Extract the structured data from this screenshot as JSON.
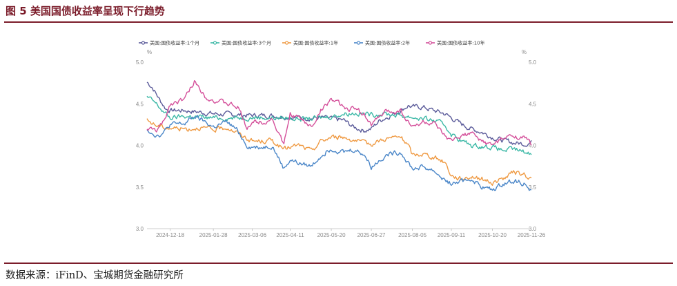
{
  "figure": {
    "title": "图 5 美国国债收益率呈现下行趋势",
    "source": "数据来源：iFinD、宝城期货金融研究所"
  },
  "chart_data": {
    "type": "line",
    "title": "",
    "xlabel": "",
    "ylabel_left": "%",
    "ylabel_right": "%",
    "ylim": [
      3.0,
      5.0
    ],
    "yticks": [
      "5.0",
      "4.5",
      "4.0",
      "3.5",
      "3.0"
    ],
    "grid": false,
    "legend": "top",
    "x_start": "2024-11-26",
    "x_end": "2025-11-26",
    "x_tick_labels": [
      "2024-12-18",
      "2025-01-28",
      "2025-03-06",
      "2025-04-11",
      "2025-05-20",
      "2025-06-27",
      "2025-08-05",
      "2025-09-11",
      "2025-10-20",
      "2025-11-26"
    ],
    "series": [
      {
        "name": "美国:国债收益率:1个月",
        "color": "#5b5b9a",
        "points": [
          [
            "2024-11-26",
            4.76
          ],
          [
            "2024-12-01",
            4.7
          ],
          [
            "2024-12-08",
            4.55
          ],
          [
            "2024-12-14",
            4.44
          ],
          [
            "2024-12-18",
            4.42
          ],
          [
            "2025-01-01",
            4.42
          ],
          [
            "2025-01-15",
            4.4
          ],
          [
            "2025-01-28",
            4.38
          ],
          [
            "2025-02-15",
            4.37
          ],
          [
            "2025-03-06",
            4.36
          ],
          [
            "2025-03-25",
            4.36
          ],
          [
            "2025-04-11",
            4.34
          ],
          [
            "2025-04-25",
            4.33
          ],
          [
            "2025-05-10",
            4.33
          ],
          [
            "2025-05-20",
            4.32
          ],
          [
            "2025-06-01",
            4.3
          ],
          [
            "2025-06-10",
            4.22
          ],
          [
            "2025-06-20",
            4.18
          ],
          [
            "2025-06-27",
            4.2
          ],
          [
            "2025-07-05",
            4.3
          ],
          [
            "2025-07-15",
            4.36
          ],
          [
            "2025-07-25",
            4.42
          ],
          [
            "2025-08-01",
            4.48
          ],
          [
            "2025-08-05",
            4.46
          ],
          [
            "2025-08-15",
            4.46
          ],
          [
            "2025-08-25",
            4.42
          ],
          [
            "2025-09-05",
            4.38
          ],
          [
            "2025-09-11",
            4.33
          ],
          [
            "2025-09-20",
            4.26
          ],
          [
            "2025-09-30",
            4.2
          ],
          [
            "2025-10-10",
            4.16
          ],
          [
            "2025-10-20",
            4.1
          ],
          [
            "2025-10-30",
            4.06
          ],
          [
            "2025-11-10",
            4.03
          ],
          [
            "2025-11-20",
            4.02
          ],
          [
            "2025-11-26",
            4.04
          ]
        ]
      },
      {
        "name": "美国:国债收益率:3个月",
        "color": "#3bb8a6",
        "points": [
          [
            "2024-11-26",
            4.58
          ],
          [
            "2024-12-03",
            4.52
          ],
          [
            "2024-12-12",
            4.4
          ],
          [
            "2024-12-18",
            4.33
          ],
          [
            "2025-01-01",
            4.35
          ],
          [
            "2025-01-15",
            4.34
          ],
          [
            "2025-01-28",
            4.33
          ],
          [
            "2025-02-15",
            4.33
          ],
          [
            "2025-03-06",
            4.34
          ],
          [
            "2025-03-25",
            4.33
          ],
          [
            "2025-04-11",
            4.33
          ],
          [
            "2025-04-25",
            4.32
          ],
          [
            "2025-05-10",
            4.33
          ],
          [
            "2025-05-20",
            4.35
          ],
          [
            "2025-06-01",
            4.38
          ],
          [
            "2025-06-10",
            4.39
          ],
          [
            "2025-06-20",
            4.38
          ],
          [
            "2025-06-27",
            4.37
          ],
          [
            "2025-07-10",
            4.38
          ],
          [
            "2025-07-25",
            4.36
          ],
          [
            "2025-08-05",
            4.34
          ],
          [
            "2025-08-15",
            4.32
          ],
          [
            "2025-08-25",
            4.3
          ],
          [
            "2025-09-05",
            4.24
          ],
          [
            "2025-09-11",
            4.14
          ],
          [
            "2025-09-20",
            4.06
          ],
          [
            "2025-09-30",
            4.0
          ],
          [
            "2025-10-10",
            3.99
          ],
          [
            "2025-10-20",
            3.98
          ],
          [
            "2025-10-30",
            3.94
          ],
          [
            "2025-11-10",
            3.95
          ],
          [
            "2025-11-20",
            3.92
          ],
          [
            "2025-11-26",
            3.9
          ]
        ]
      },
      {
        "name": "美国:国债收益率:1年",
        "color": "#ef9a43",
        "points": [
          [
            "2024-11-26",
            4.3
          ],
          [
            "2024-12-05",
            4.24
          ],
          [
            "2024-12-12",
            4.22
          ],
          [
            "2024-12-18",
            4.21
          ],
          [
            "2025-01-05",
            4.2
          ],
          [
            "2025-01-15",
            4.22
          ],
          [
            "2025-01-28",
            4.18
          ],
          [
            "2025-02-10",
            4.22
          ],
          [
            "2025-02-20",
            4.15
          ],
          [
            "2025-03-06",
            4.05
          ],
          [
            "2025-03-15",
            4.05
          ],
          [
            "2025-03-25",
            4.06
          ],
          [
            "2025-04-05",
            3.95
          ],
          [
            "2025-04-11",
            3.98
          ],
          [
            "2025-04-20",
            4.0
          ],
          [
            "2025-05-01",
            3.93
          ],
          [
            "2025-05-10",
            4.05
          ],
          [
            "2025-05-20",
            4.1
          ],
          [
            "2025-06-01",
            4.1
          ],
          [
            "2025-06-10",
            4.07
          ],
          [
            "2025-06-20",
            4.02
          ],
          [
            "2025-06-27",
            4.02
          ],
          [
            "2025-07-10",
            4.08
          ],
          [
            "2025-07-25",
            4.1
          ],
          [
            "2025-08-01",
            4.0
          ],
          [
            "2025-08-05",
            3.88
          ],
          [
            "2025-08-15",
            3.9
          ],
          [
            "2025-08-25",
            3.86
          ],
          [
            "2025-09-05",
            3.8
          ],
          [
            "2025-09-11",
            3.64
          ],
          [
            "2025-09-20",
            3.6
          ],
          [
            "2025-09-30",
            3.63
          ],
          [
            "2025-10-10",
            3.6
          ],
          [
            "2025-10-20",
            3.55
          ],
          [
            "2025-10-30",
            3.6
          ],
          [
            "2025-11-10",
            3.68
          ],
          [
            "2025-11-20",
            3.64
          ],
          [
            "2025-11-26",
            3.6
          ]
        ]
      },
      {
        "name": "美国:国债收益率:2年",
        "color": "#4a86c8",
        "points": [
          [
            "2024-11-26",
            4.2
          ],
          [
            "2024-12-05",
            4.12
          ],
          [
            "2024-12-12",
            4.15
          ],
          [
            "2024-12-18",
            4.25
          ],
          [
            "2025-01-01",
            4.26
          ],
          [
            "2025-01-10",
            4.35
          ],
          [
            "2025-01-20",
            4.28
          ],
          [
            "2025-01-28",
            4.22
          ],
          [
            "2025-02-10",
            4.28
          ],
          [
            "2025-02-20",
            4.18
          ],
          [
            "2025-03-01",
            4.0
          ],
          [
            "2025-03-06",
            3.98
          ],
          [
            "2025-03-15",
            3.98
          ],
          [
            "2025-03-25",
            4.0
          ],
          [
            "2025-04-05",
            3.72
          ],
          [
            "2025-04-11",
            3.83
          ],
          [
            "2025-04-20",
            3.78
          ],
          [
            "2025-05-01",
            3.75
          ],
          [
            "2025-05-10",
            3.88
          ],
          [
            "2025-05-20",
            3.97
          ],
          [
            "2025-06-01",
            3.92
          ],
          [
            "2025-06-10",
            3.95
          ],
          [
            "2025-06-20",
            3.9
          ],
          [
            "2025-06-27",
            3.74
          ],
          [
            "2025-07-10",
            3.88
          ],
          [
            "2025-07-25",
            3.92
          ],
          [
            "2025-08-01",
            3.8
          ],
          [
            "2025-08-05",
            3.72
          ],
          [
            "2025-08-15",
            3.74
          ],
          [
            "2025-08-25",
            3.7
          ],
          [
            "2025-09-05",
            3.58
          ],
          [
            "2025-09-11",
            3.54
          ],
          [
            "2025-09-20",
            3.56
          ],
          [
            "2025-09-30",
            3.6
          ],
          [
            "2025-10-10",
            3.5
          ],
          [
            "2025-10-20",
            3.46
          ],
          [
            "2025-10-30",
            3.54
          ],
          [
            "2025-11-10",
            3.58
          ],
          [
            "2025-11-20",
            3.54
          ],
          [
            "2025-11-26",
            3.44
          ]
        ]
      },
      {
        "name": "美国:国债收益率:10年",
        "color": "#d44f9a",
        "points": [
          [
            "2024-11-26",
            4.2
          ],
          [
            "2024-12-05",
            4.18
          ],
          [
            "2024-12-12",
            4.28
          ],
          [
            "2024-12-18",
            4.5
          ],
          [
            "2025-01-01",
            4.56
          ],
          [
            "2025-01-10",
            4.77
          ],
          [
            "2025-01-20",
            4.6
          ],
          [
            "2025-01-28",
            4.54
          ],
          [
            "2025-02-10",
            4.5
          ],
          [
            "2025-02-20",
            4.46
          ],
          [
            "2025-03-01",
            4.22
          ],
          [
            "2025-03-06",
            4.28
          ],
          [
            "2025-03-15",
            4.28
          ],
          [
            "2025-03-25",
            4.32
          ],
          [
            "2025-04-05",
            4.0
          ],
          [
            "2025-04-11",
            4.38
          ],
          [
            "2025-04-20",
            4.32
          ],
          [
            "2025-05-01",
            4.22
          ],
          [
            "2025-05-10",
            4.42
          ],
          [
            "2025-05-20",
            4.56
          ],
          [
            "2025-06-01",
            4.45
          ],
          [
            "2025-06-10",
            4.44
          ],
          [
            "2025-06-20",
            4.38
          ],
          [
            "2025-06-27",
            4.25
          ],
          [
            "2025-07-10",
            4.4
          ],
          [
            "2025-07-25",
            4.42
          ],
          [
            "2025-08-01",
            4.28
          ],
          [
            "2025-08-05",
            4.22
          ],
          [
            "2025-08-15",
            4.28
          ],
          [
            "2025-08-25",
            4.26
          ],
          [
            "2025-09-05",
            4.1
          ],
          [
            "2025-09-11",
            4.04
          ],
          [
            "2025-09-20",
            4.12
          ],
          [
            "2025-09-30",
            4.14
          ],
          [
            "2025-10-10",
            4.05
          ],
          [
            "2025-10-20",
            4.0
          ],
          [
            "2025-10-30",
            4.08
          ],
          [
            "2025-11-10",
            4.12
          ],
          [
            "2025-11-20",
            4.08
          ],
          [
            "2025-11-26",
            4.02
          ]
        ]
      }
    ]
  }
}
